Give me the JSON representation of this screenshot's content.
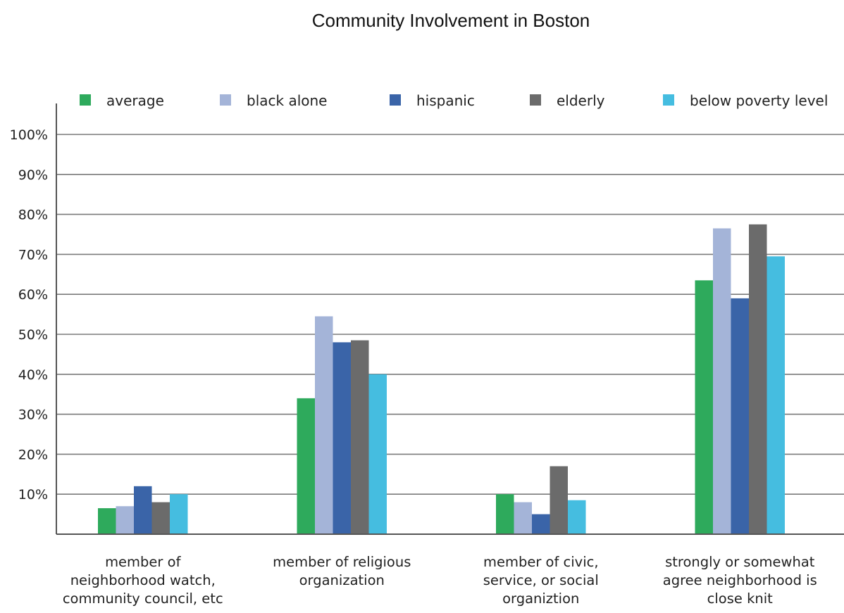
{
  "chart_data": {
    "type": "bar",
    "title": "Community Involvement in Boston",
    "xlabel": "",
    "ylabel": "",
    "ylim": [
      0,
      100
    ],
    "yticks": [
      "10%",
      "20%",
      "30%",
      "40%",
      "50%",
      "60%",
      "70%",
      "80%",
      "90%",
      "100%"
    ],
    "ytick_values": [
      10,
      20,
      30,
      40,
      50,
      60,
      70,
      80,
      90,
      100
    ],
    "grid": true,
    "legend_position": "top",
    "categories": [
      [
        "member of",
        "neighborhood watch,",
        "community council, etc"
      ],
      [
        "member of religious",
        "organization"
      ],
      [
        "member of civic,",
        "service, or social",
        "organiztion"
      ],
      [
        "strongly or somewhat",
        "agree neighborhood is",
        "close knit"
      ]
    ],
    "series": [
      {
        "name": "average",
        "color": "#2eaa5c",
        "values": [
          6.5,
          34,
          10,
          63.5
        ]
      },
      {
        "name": "black alone",
        "color": "#a4b4d8",
        "values": [
          7,
          54.5,
          8,
          76.5
        ]
      },
      {
        "name": "hispanic",
        "color": "#3a64a8",
        "values": [
          12,
          48,
          5,
          59
        ]
      },
      {
        "name": "elderly",
        "color": "#6b6b6b",
        "values": [
          8,
          48.5,
          17,
          77.5
        ]
      },
      {
        "name": "below poverty level",
        "color": "#45bde0",
        "values": [
          10,
          40,
          8.5,
          69.5
        ]
      }
    ]
  }
}
